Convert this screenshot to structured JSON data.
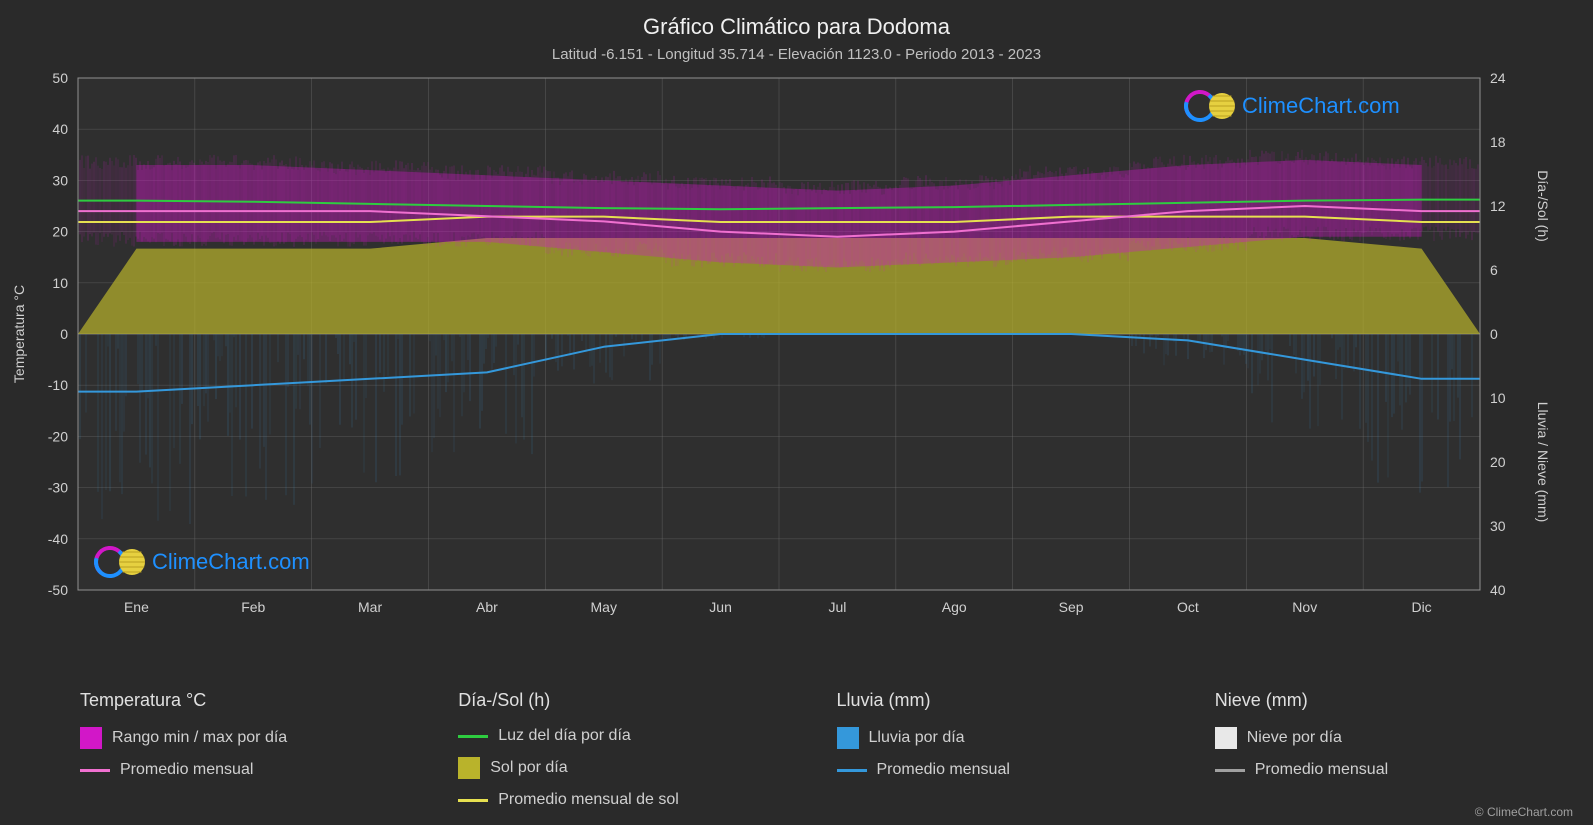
{
  "title": "Gráfico Climático para Dodoma",
  "subtitle": "Latitud -6.151 - Longitud 35.714 - Elevación 1123.0 - Periodo 2013 - 2023",
  "watermark_text": "ClimeChart.com",
  "footer_text": "© ClimeChart.com",
  "chart": {
    "background": "#2a2a2a",
    "plot_background": "#2f2f2f",
    "grid_color": "#707070",
    "grid_major_color": "#909090",
    "axis_text_color": "#d0d0d0",
    "axis_font_size": 14,
    "left_axis": {
      "label": "Temperatura °C",
      "min": -50,
      "max": 50,
      "ticks": [
        -50,
        -40,
        -30,
        -20,
        -10,
        0,
        10,
        20,
        30,
        40,
        50
      ]
    },
    "right_axis_top": {
      "label": "Día-/Sol (h)",
      "min": 0,
      "max": 24,
      "ticks": [
        0,
        6,
        12,
        18,
        24
      ]
    },
    "right_axis_bottom": {
      "label": "Lluvia / Nieve (mm)",
      "min": 0,
      "max": 40,
      "ticks": [
        0,
        10,
        20,
        30,
        40
      ]
    },
    "x_axis": {
      "labels": [
        "Ene",
        "Feb",
        "Mar",
        "Abr",
        "May",
        "Jun",
        "Jul",
        "Ago",
        "Sep",
        "Oct",
        "Nov",
        "Dic"
      ]
    },
    "series": {
      "temp_range_band": {
        "color": "#d217c8",
        "fill_opacity": 0.75,
        "top_values": [
          33,
          33,
          32,
          31,
          30,
          29,
          28,
          29,
          31,
          33,
          34,
          33
        ],
        "bottom_values": [
          18,
          18,
          18,
          18,
          16,
          14,
          13,
          14,
          15,
          17,
          19,
          19
        ]
      },
      "temp_avg_line": {
        "color": "#f070d0",
        "width": 2,
        "values": [
          24,
          24,
          24,
          23,
          22,
          20,
          19,
          20,
          22,
          24,
          25,
          24
        ]
      },
      "daylight_line": {
        "color": "#2ecc40",
        "width": 2,
        "values_hours": [
          12.5,
          12.4,
          12.2,
          12.0,
          11.8,
          11.7,
          11.8,
          11.9,
          12.1,
          12.3,
          12.5,
          12.6
        ]
      },
      "sun_band": {
        "color": "#b9b32b",
        "fill_opacity": 0.7,
        "values_hours": [
          8,
          8,
          8,
          9,
          9,
          9,
          9,
          9,
          9,
          9,
          9,
          8
        ]
      },
      "sun_avg_line": {
        "color": "#e6e050",
        "width": 2,
        "values_hours": [
          10.5,
          10.5,
          10.5,
          11,
          11,
          10.5,
          10.5,
          10.5,
          11,
          11,
          11,
          10.5
        ]
      },
      "rain_avg_line": {
        "color": "#3498db",
        "width": 2,
        "values_mm": [
          9,
          8,
          7,
          6,
          2,
          0,
          0,
          0,
          0,
          1,
          4,
          7
        ]
      },
      "rain_daily_spikes": {
        "color": "#3498db",
        "opacity": 0.4,
        "max_mm_by_month": [
          30,
          28,
          25,
          20,
          8,
          1,
          0,
          0,
          0,
          5,
          15,
          28
        ]
      }
    }
  },
  "legend": {
    "columns": [
      {
        "header": "Temperatura °C",
        "items": [
          {
            "type": "swatch",
            "color": "#d217c8",
            "label": "Rango min / max por día"
          },
          {
            "type": "line",
            "color": "#f070d0",
            "label": "Promedio mensual"
          }
        ]
      },
      {
        "header": "Día-/Sol (h)",
        "items": [
          {
            "type": "line",
            "color": "#2ecc40",
            "label": "Luz del día por día"
          },
          {
            "type": "swatch",
            "color": "#b9b32b",
            "label": "Sol por día"
          },
          {
            "type": "line",
            "color": "#e6e050",
            "label": "Promedio mensual de sol"
          }
        ]
      },
      {
        "header": "Lluvia (mm)",
        "items": [
          {
            "type": "swatch",
            "color": "#3498db",
            "label": "Lluvia por día"
          },
          {
            "type": "line",
            "color": "#3498db",
            "label": "Promedio mensual"
          }
        ]
      },
      {
        "header": "Nieve (mm)",
        "items": [
          {
            "type": "swatch",
            "color": "#e8e8e8",
            "label": "Nieve por día"
          },
          {
            "type": "line",
            "color": "#a0a0a0",
            "label": "Promedio mensual"
          }
        ]
      }
    ]
  }
}
